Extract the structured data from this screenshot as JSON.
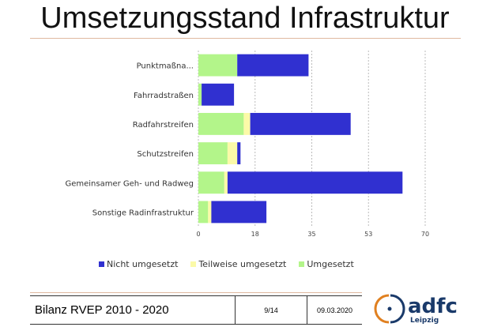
{
  "title": "Umsetzungsstand Infrastruktur",
  "chart_data": {
    "type": "bar",
    "orientation": "horizontal",
    "stacked": true,
    "categories": [
      "Punktmaßna...",
      "Fahrradstraßen",
      "Radfahrstreifen",
      "Schutzstreifen",
      "Gemeinsamer Geh- und Radweg",
      "Sonstige Radinfrastruktur"
    ],
    "series": [
      {
        "name": "Umgesetzt",
        "color": "#b3f58a",
        "values": [
          12,
          1,
          14,
          9,
          8,
          3
        ]
      },
      {
        "name": "Teilweise umgesetzt",
        "color": "#fbfaa8",
        "values": [
          0,
          0,
          2,
          3,
          1,
          1
        ]
      },
      {
        "name": "Nicht umgesetzt",
        "color": "#3030d0",
        "values": [
          22,
          10,
          31,
          1,
          54,
          17
        ]
      }
    ],
    "xticks": [
      "0",
      "18",
      "35",
      "53",
      "70"
    ],
    "xlim": [
      0,
      70
    ],
    "grid": true,
    "legend": "bottom"
  },
  "legend_order": [
    2,
    1,
    0
  ],
  "footer": {
    "title": "Bilanz RVEP 2010 - 2020",
    "page": "9/14",
    "date": "09.03.2020"
  },
  "logo": {
    "name": "adfc",
    "city": "Leipzig"
  }
}
